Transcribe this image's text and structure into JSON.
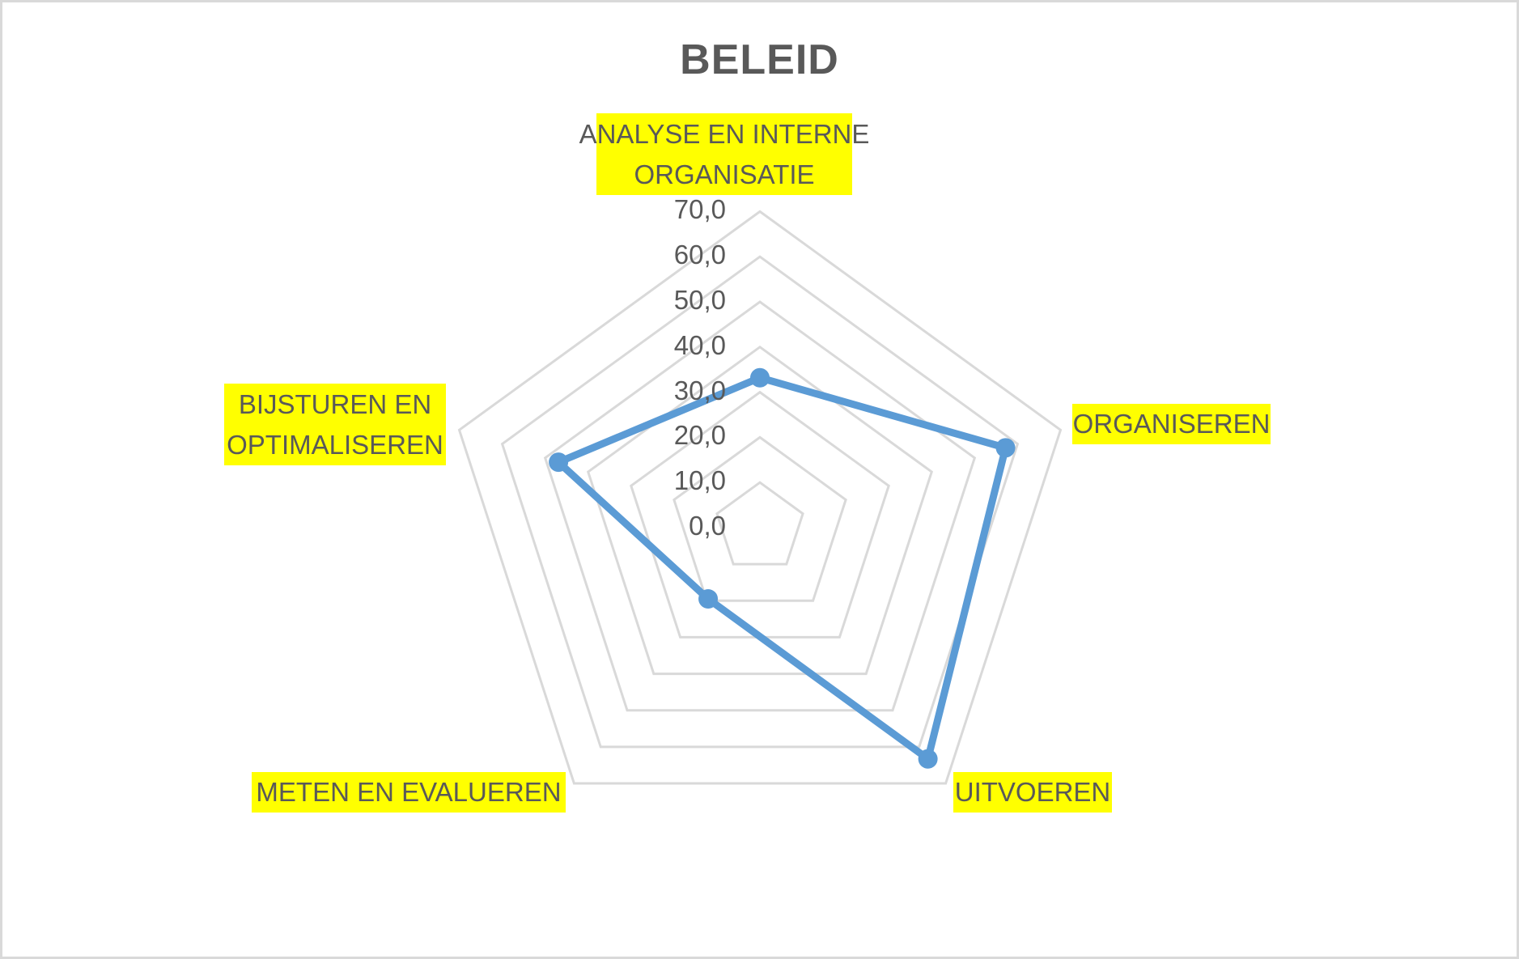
{
  "chart_data": {
    "type": "radar",
    "title": "BELEID",
    "categories": [
      "ANALYSE EN INTERNE ORGANISATIE",
      "ORGANISEREN",
      "UITVOEREN",
      "METEN EN EVALUEREN",
      "BIJSTUREN EN OPTIMALISEREN"
    ],
    "series": [
      {
        "name": "Beleid",
        "values": [
          33.2,
          57.2,
          63.3,
          19.5,
          46.9
        ],
        "color": "#5b9bd5"
      }
    ],
    "rlim": [
      0,
      70
    ],
    "ticks": [
      "0,0",
      "10,0",
      "20,0",
      "30,0",
      "40,0",
      "50,0",
      "60,0",
      "70,0"
    ],
    "tick_values": [
      0,
      10,
      20,
      30,
      40,
      50,
      60,
      70
    ],
    "grid": true,
    "legend": "none",
    "label_highlight": "#ffff00",
    "grid_color": "#d9d9d9",
    "text_color": "#595959"
  },
  "labels": {
    "top_line1": "ANALYSE EN INTERNE",
    "top_line2": "ORGANISATIE",
    "right": "ORGANISEREN",
    "bottom_right": "UITVOEREN",
    "bottom_left": "METEN EN EVALUEREN",
    "left_line1": "BIJSTUREN EN",
    "left_line2": "OPTIMALISEREN"
  }
}
